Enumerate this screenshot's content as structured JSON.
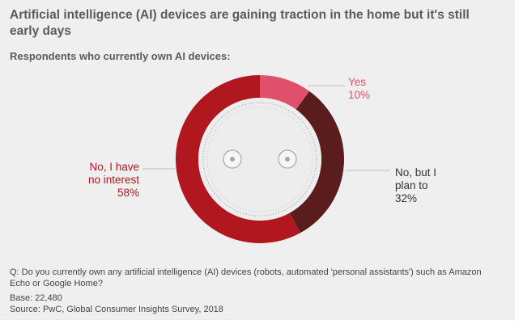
{
  "title": "Artificial intelligence (AI) devices are gaining traction in the home but it's still early days",
  "subtitle": "Respondents who currently own AI devices:",
  "chart_data": {
    "type": "pie",
    "title": "Respondents who currently own AI devices:",
    "slices": [
      {
        "label_lines": [
          "Yes"
        ],
        "value": 10,
        "value_label": "10%",
        "color": "#e0506a"
      },
      {
        "label_lines": [
          "No, but I",
          "plan to"
        ],
        "value": 32,
        "value_label": "32%",
        "color": "#5a1c1c"
      },
      {
        "label_lines": [
          "No, I have",
          "no interest"
        ],
        "value": 58,
        "value_label": "58%",
        "color": "#b0171f"
      }
    ]
  },
  "footer": {
    "question": "Q: Do you currently own any artificial intelligence (AI) devices (robots, automated 'personal assistants') such as Amazon Echo or Google Home?",
    "base": "Base: 22,480",
    "source": "Source: PwC, Global Consumer Insights Survey, 2018"
  }
}
